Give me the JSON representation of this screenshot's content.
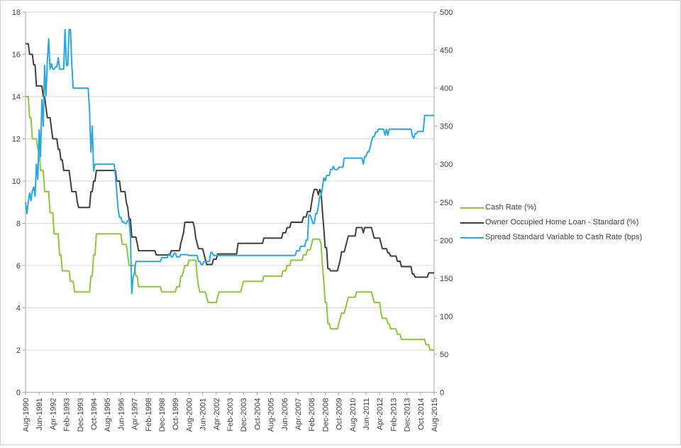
{
  "chart_data": {
    "type": "line",
    "title": "",
    "grid": "horizontal",
    "legend_position": "right",
    "x_axis": {
      "unit": "month",
      "total_months": 301,
      "months_per_tick": 10,
      "tick_labels": [
        "Aug-1990",
        "Jun-1991",
        "Apr-1992",
        "Feb-1993",
        "Dec-1993",
        "Oct-1994",
        "Aug-1995",
        "Jun-1996",
        "Apr-1997",
        "Feb-1998",
        "Dec-1998",
        "Oct-1999",
        "Aug-2000",
        "Jun-2001",
        "Apr-2002",
        "Feb-2003",
        "Dec-2003",
        "Oct-2004",
        "Aug-2005",
        "Jun-2006",
        "Apr-2007",
        "Feb-2008",
        "Dec-2008",
        "Oct-2009",
        "Aug-2010",
        "Jun-2011",
        "Apr-2012",
        "Feb-2013",
        "Dec-2013",
        "Oct-2014",
        "Aug-2015"
      ]
    },
    "left_axis": {
      "min": 0,
      "max": 18,
      "step": 2,
      "ticks": [
        0,
        2,
        4,
        6,
        8,
        10,
        12,
        14,
        16,
        18
      ]
    },
    "right_axis": {
      "min": 0,
      "max": 500,
      "step": 50,
      "ticks": [
        0,
        50,
        100,
        150,
        200,
        250,
        300,
        350,
        400,
        450,
        500
      ]
    },
    "series": [
      {
        "name": "Cash Rate (%)",
        "axis": "left",
        "color": "#8dc63f",
        "steps": [
          [
            0,
            14
          ],
          [
            3,
            13
          ],
          [
            5,
            12
          ],
          [
            9,
            11.5
          ],
          [
            11,
            10.5
          ],
          [
            14,
            9.5
          ],
          [
            18,
            8.5
          ],
          [
            21,
            7.5
          ],
          [
            25,
            6.5
          ],
          [
            27,
            5.75
          ],
          [
            33,
            5.25
          ],
          [
            36,
            4.75
          ],
          [
            48,
            5.5
          ],
          [
            50,
            6.5
          ],
          [
            52,
            7.5
          ],
          [
            71,
            7.0
          ],
          [
            75,
            6.5
          ],
          [
            76,
            6.0
          ],
          [
            81,
            5.5
          ],
          [
            83,
            5.0
          ],
          [
            100,
            4.75
          ],
          [
            111,
            5.0
          ],
          [
            114,
            5.5
          ],
          [
            116,
            5.75
          ],
          [
            117,
            6.0
          ],
          [
            120,
            6.25
          ],
          [
            126,
            5.5
          ],
          [
            127,
            5.0
          ],
          [
            128,
            4.75
          ],
          [
            133,
            4.5
          ],
          [
            134,
            4.25
          ],
          [
            141,
            4.5
          ],
          [
            142,
            4.75
          ],
          [
            159,
            5.0
          ],
          [
            160,
            5.25
          ],
          [
            175,
            5.5
          ],
          [
            189,
            5.75
          ],
          [
            192,
            6.0
          ],
          [
            195,
            6.25
          ],
          [
            204,
            6.5
          ],
          [
            207,
            6.75
          ],
          [
            210,
            7.0
          ],
          [
            211,
            7.25
          ],
          [
            217,
            7.0
          ],
          [
            218,
            6.0
          ],
          [
            219,
            5.25
          ],
          [
            220,
            4.25
          ],
          [
            222,
            3.25
          ],
          [
            224,
            3.0
          ],
          [
            230,
            3.25
          ],
          [
            231,
            3.5
          ],
          [
            232,
            3.75
          ],
          [
            235,
            4.0
          ],
          [
            236,
            4.25
          ],
          [
            237,
            4.5
          ],
          [
            243,
            4.75
          ],
          [
            255,
            4.5
          ],
          [
            256,
            4.25
          ],
          [
            261,
            3.75
          ],
          [
            262,
            3.5
          ],
          [
            266,
            3.25
          ],
          [
            268,
            3.0
          ],
          [
            273,
            2.75
          ],
          [
            276,
            2.5
          ],
          [
            294,
            2.25
          ],
          [
            297,
            2.0
          ]
        ]
      },
      {
        "name": "Owner Occupied Home Loan - Standard (%)",
        "axis": "left",
        "color": "#3f3f3f",
        "steps": [
          [
            0,
            16.5
          ],
          [
            3,
            16.0
          ],
          [
            6,
            15.5
          ],
          [
            8,
            14.5
          ],
          [
            13,
            14.0
          ],
          [
            15,
            13.5
          ],
          [
            16,
            13.0
          ],
          [
            19,
            12.5
          ],
          [
            20,
            12.0
          ],
          [
            24,
            11.5
          ],
          [
            26,
            11.0
          ],
          [
            28,
            10.5
          ],
          [
            33,
            10.0
          ],
          [
            34,
            9.5
          ],
          [
            38,
            9.0
          ],
          [
            39,
            8.75
          ],
          [
            48,
            9.5
          ],
          [
            50,
            10.0
          ],
          [
            52,
            10.5
          ],
          [
            67,
            10.0
          ],
          [
            70,
            9.5
          ],
          [
            74,
            9.0
          ],
          [
            75,
            8.75
          ],
          [
            76,
            8.2
          ],
          [
            78,
            7.35
          ],
          [
            82,
            7.05
          ],
          [
            83,
            6.7
          ],
          [
            96,
            6.5
          ],
          [
            107,
            6.7
          ],
          [
            114,
            7.05
          ],
          [
            115,
            7.3
          ],
          [
            116,
            7.55
          ],
          [
            117,
            8.05
          ],
          [
            124,
            7.8
          ],
          [
            125,
            7.3
          ],
          [
            126,
            7.05
          ],
          [
            127,
            6.8
          ],
          [
            131,
            6.55
          ],
          [
            132,
            6.3
          ],
          [
            133,
            6.05
          ],
          [
            138,
            6.3
          ],
          [
            141,
            6.55
          ],
          [
            156,
            7.05
          ],
          [
            175,
            7.3
          ],
          [
            189,
            7.55
          ],
          [
            192,
            7.8
          ],
          [
            195,
            8.05
          ],
          [
            204,
            8.3
          ],
          [
            207,
            8.55
          ],
          [
            210,
            8.95
          ],
          [
            211,
            9.35
          ],
          [
            212,
            9.6
          ],
          [
            215,
            9.35
          ],
          [
            216,
            9.6
          ],
          [
            217,
            9.45
          ],
          [
            218,
            8.55
          ],
          [
            219,
            7.75
          ],
          [
            220,
            6.85
          ],
          [
            222,
            5.85
          ],
          [
            224,
            5.75
          ],
          [
            230,
            6.0
          ],
          [
            231,
            6.25
          ],
          [
            232,
            6.65
          ],
          [
            235,
            6.9
          ],
          [
            236,
            7.15
          ],
          [
            237,
            7.4
          ],
          [
            243,
            7.8
          ],
          [
            248,
            7.55
          ],
          [
            249,
            7.8
          ],
          [
            255,
            7.55
          ],
          [
            256,
            7.3
          ],
          [
            261,
            7.05
          ],
          [
            262,
            6.8
          ],
          [
            266,
            6.6
          ],
          [
            268,
            6.45
          ],
          [
            273,
            6.2
          ],
          [
            276,
            5.95
          ],
          [
            284,
            5.6
          ],
          [
            286,
            5.45
          ],
          [
            296,
            5.65
          ]
        ]
      },
      {
        "name": "Spread Standard Variable to Cash Rate (bps)",
        "axis": "right",
        "color": "#29a8df",
        "steps": [
          [
            0,
            250
          ],
          [
            1,
            235
          ],
          [
            2,
            250
          ],
          [
            3,
            262
          ],
          [
            4,
            252
          ],
          [
            5,
            265
          ],
          [
            6,
            270
          ],
          [
            7,
            258
          ],
          [
            8,
            300
          ],
          [
            9,
            280
          ],
          [
            10,
            345
          ],
          [
            11,
            310
          ],
          [
            12,
            385
          ],
          [
            13,
            350
          ],
          [
            14,
            430
          ],
          [
            15,
            390
          ],
          [
            16,
            435
          ],
          [
            17,
            465
          ],
          [
            18,
            425
          ],
          [
            19,
            432
          ],
          [
            20,
            425
          ],
          [
            22,
            428
          ],
          [
            24,
            440
          ],
          [
            25,
            425
          ],
          [
            29,
            477
          ],
          [
            30,
            430
          ],
          [
            32,
            477
          ],
          [
            34,
            430
          ],
          [
            35,
            400
          ],
          [
            47,
            370
          ],
          [
            48,
            316
          ],
          [
            49,
            350
          ],
          [
            50,
            291
          ],
          [
            51,
            300
          ],
          [
            66,
            285
          ],
          [
            67,
            262
          ],
          [
            68,
            240
          ],
          [
            69,
            230
          ],
          [
            71,
            224
          ],
          [
            73,
            222
          ],
          [
            75,
            226
          ],
          [
            77,
            205
          ],
          [
            78,
            130
          ],
          [
            79,
            152
          ],
          [
            80,
            157
          ],
          [
            81,
            172
          ],
          [
            100,
            177
          ],
          [
            105,
            182
          ],
          [
            107,
            178
          ],
          [
            109,
            183
          ],
          [
            111,
            178
          ],
          [
            114,
            181
          ],
          [
            120,
            180
          ],
          [
            127,
            172
          ],
          [
            129,
            168
          ],
          [
            131,
            172
          ],
          [
            136,
            184
          ],
          [
            138,
            180
          ],
          [
            199,
            186
          ],
          [
            202,
            192
          ],
          [
            206,
            200
          ],
          [
            208,
            233
          ],
          [
            210,
            228
          ],
          [
            211,
            222
          ],
          [
            213,
            235
          ],
          [
            215,
            245
          ],
          [
            216,
            258
          ],
          [
            218,
            270
          ],
          [
            219,
            282
          ],
          [
            220,
            278
          ],
          [
            221,
            285
          ],
          [
            224,
            293
          ],
          [
            226,
            297
          ],
          [
            227,
            293
          ],
          [
            230,
            296
          ],
          [
            234,
            308
          ],
          [
            248,
            300
          ],
          [
            249,
            310
          ],
          [
            251,
            316
          ],
          [
            253,
            322
          ],
          [
            254,
            330
          ],
          [
            255,
            336
          ],
          [
            257,
            342
          ],
          [
            259,
            346
          ],
          [
            264,
            338
          ],
          [
            265,
            346
          ],
          [
            266,
            338
          ],
          [
            267,
            346
          ],
          [
            284,
            337
          ],
          [
            285,
            334
          ],
          [
            286,
            340
          ],
          [
            288,
            343
          ],
          [
            293,
            364
          ]
        ]
      }
    ]
  },
  "colors": {
    "background": "#ffffff",
    "gridline": "#d9d9d9",
    "axis": "#a6a6a6",
    "text": "#3f3f3f",
    "border": "#cfcfcf"
  }
}
